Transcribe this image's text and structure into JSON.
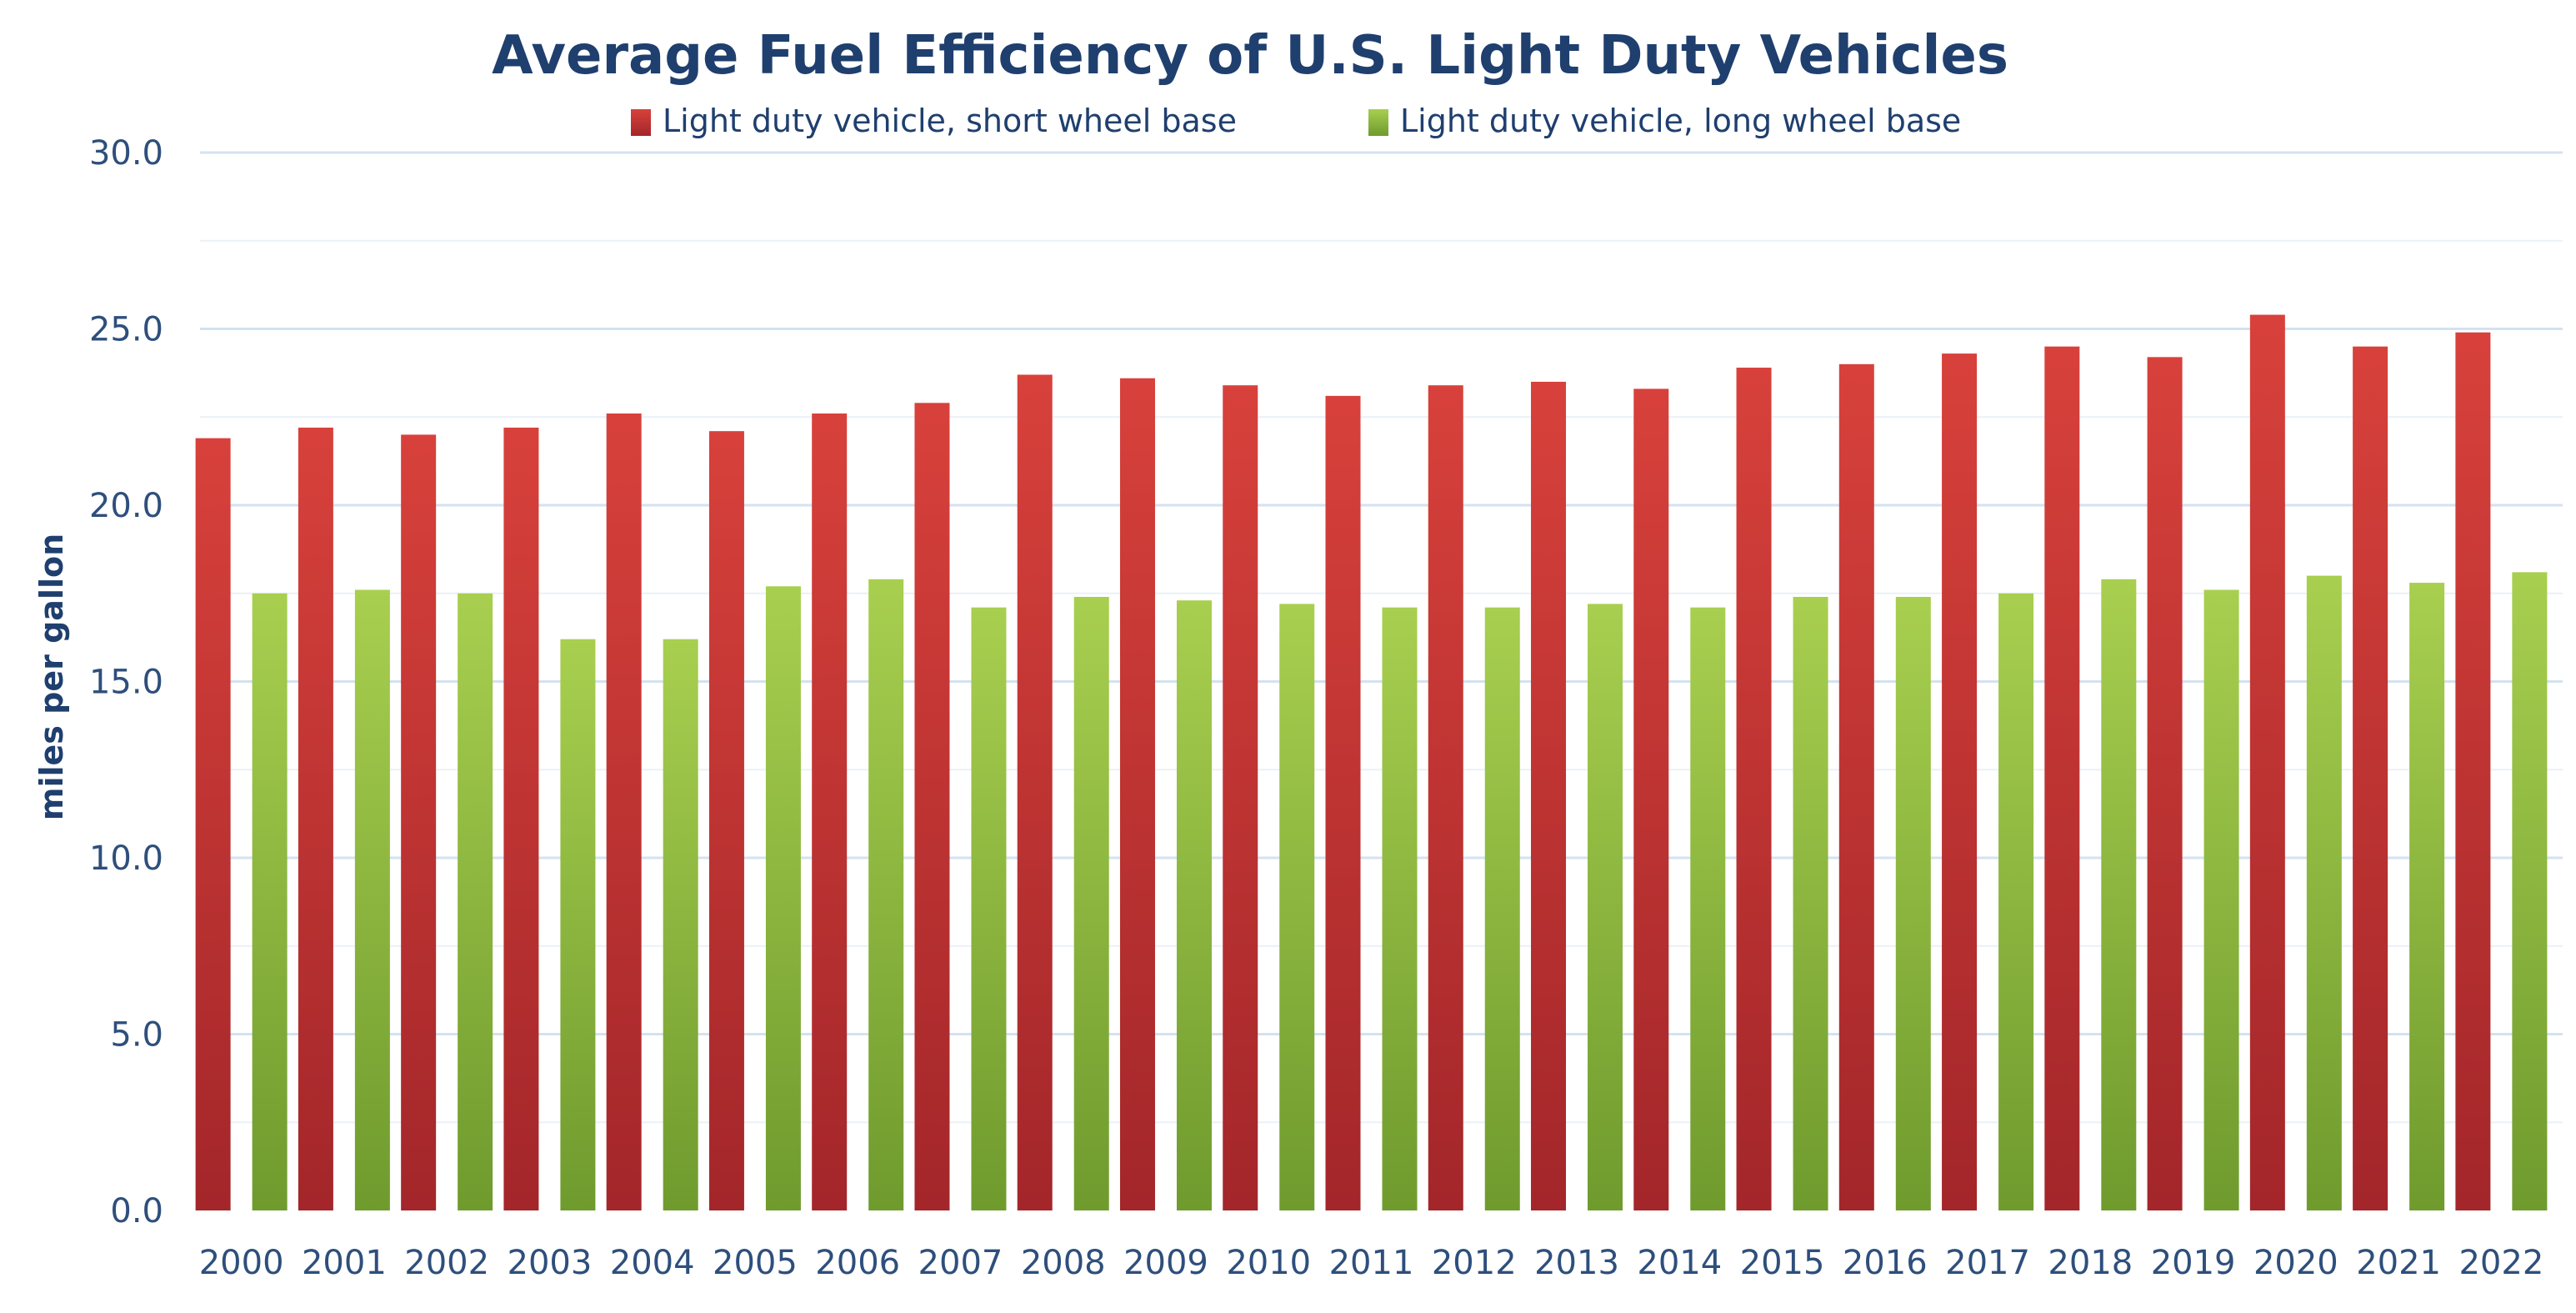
{
  "chart_data": {
    "type": "bar",
    "title": "Average Fuel Efficiency of U.S. Light Duty Vehicles",
    "xlabel": "",
    "ylabel": "miles per gallon",
    "ylim": [
      0,
      30
    ],
    "yticks": [
      "0.0",
      "5.0",
      "10.0",
      "15.0",
      "20.0",
      "25.0",
      "30.0"
    ],
    "grid": true,
    "legend_position": "top",
    "categories": [
      "2000",
      "2001",
      "2002",
      "2003",
      "2004",
      "2005",
      "2006",
      "2007",
      "2008",
      "2009",
      "2010",
      "2011",
      "2012",
      "2013",
      "2014",
      "2015",
      "2016",
      "2017",
      "2018",
      "2019",
      "2020",
      "2021",
      "2022"
    ],
    "series": [
      {
        "name": "Light duty vehicle, short wheel base",
        "color": "#c0302f",
        "values": [
          21.9,
          22.2,
          22.0,
          22.2,
          22.6,
          22.1,
          22.6,
          22.9,
          23.7,
          23.6,
          23.4,
          23.1,
          23.4,
          23.5,
          23.3,
          23.9,
          24.0,
          24.3,
          24.5,
          24.2,
          25.4,
          24.5,
          24.9
        ]
      },
      {
        "name": "Light duty vehicle, long wheel base",
        "color": "#8ab83a",
        "values": [
          17.5,
          17.6,
          17.5,
          16.2,
          16.2,
          17.7,
          17.9,
          17.1,
          17.4,
          17.3,
          17.2,
          17.1,
          17.1,
          17.2,
          17.1,
          17.4,
          17.4,
          17.5,
          17.9,
          17.6,
          18.0,
          17.8,
          18.1
        ]
      }
    ]
  }
}
